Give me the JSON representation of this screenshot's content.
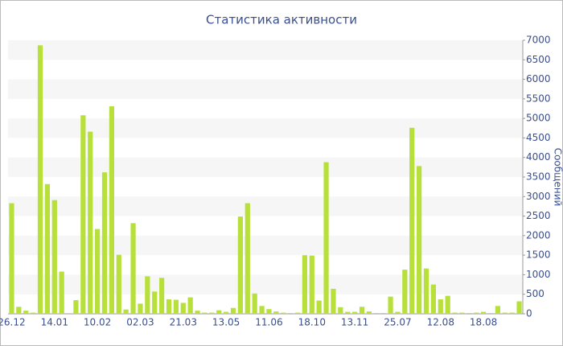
{
  "chart_data": {
    "type": "bar",
    "title": "Статистика активности",
    "y_label": "Сообщений",
    "categories": [
      "26.12",
      null,
      null,
      null,
      null,
      null,
      "14.01",
      null,
      null,
      null,
      null,
      null,
      "10.02",
      null,
      null,
      null,
      null,
      null,
      "02.03",
      null,
      null,
      null,
      null,
      null,
      "21.03",
      null,
      null,
      null,
      null,
      null,
      "13.05",
      null,
      null,
      null,
      null,
      null,
      "11.06",
      null,
      null,
      null,
      null,
      null,
      "18.10",
      null,
      null,
      null,
      null,
      null,
      "13.11",
      null,
      null,
      null,
      null,
      null,
      "25.07",
      null,
      null,
      null,
      null,
      null,
      "12.08",
      null,
      null,
      null,
      null,
      null,
      "18.08",
      null,
      null,
      null,
      null,
      null
    ],
    "values": [
      2830,
      180,
      80,
      30,
      6870,
      3320,
      2910,
      1080,
      0,
      350,
      5080,
      4660,
      2170,
      3620,
      5310,
      1510,
      110,
      2320,
      260,
      960,
      570,
      920,
      370,
      360,
      280,
      420,
      80,
      30,
      30,
      90,
      50,
      150,
      2490,
      2830,
      520,
      200,
      120,
      60,
      30,
      20,
      30,
      1500,
      1490,
      340,
      3880,
      640,
      170,
      50,
      50,
      180,
      60,
      20,
      20,
      440,
      50,
      1130,
      4760,
      3780,
      1160,
      750,
      370,
      460,
      30,
      30,
      20,
      30,
      50,
      20,
      200,
      30,
      30,
      320
    ],
    "color": "#b8e03a",
    "ylim": [
      0,
      7000
    ],
    "yticks": [
      0,
      500,
      1000,
      1500,
      2000,
      2500,
      3000,
      3500,
      4000,
      4500,
      5000,
      5500,
      6000,
      6500,
      7000
    ],
    "grid": true
  }
}
